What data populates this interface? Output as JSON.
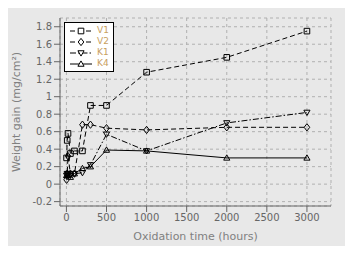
{
  "chart_data": {
    "type": "line",
    "xlabel": "Oxidation time (hours)",
    "ylabel": "Weight gain (mg/cm²)",
    "x": [
      2,
      10,
      20,
      50,
      100,
      200,
      300,
      500,
      1000,
      2000,
      3000
    ],
    "series": [
      {
        "name": "V1",
        "color": "black",
        "marker": "square",
        "line_style": "dashed",
        "values": [
          0.3,
          0.5,
          0.58,
          0.35,
          0.38,
          0.38,
          0.9,
          0.9,
          1.28,
          1.45,
          1.75
        ]
      },
      {
        "name": "V2",
        "color": "black",
        "marker": "diamond",
        "line_style": "dashed",
        "values": [
          0.05,
          0.12,
          0.32,
          0.12,
          0.12,
          0.68,
          0.68,
          0.64,
          0.62,
          0.65,
          0.65
        ]
      },
      {
        "name": "K1",
        "color": "black",
        "marker": "triangle_down",
        "line_style": "dashdot",
        "values": [
          0.1,
          0.12,
          0.12,
          0.1,
          0.12,
          0.13,
          0.22,
          0.57,
          0.38,
          0.7,
          0.82
        ]
      },
      {
        "name": "K4",
        "color": "black",
        "marker": "triangle_up",
        "line_style": "solid",
        "values": [
          0.1,
          0.1,
          0.1,
          0.08,
          0.12,
          0.18,
          0.2,
          0.39,
          0.38,
          0.3,
          0.3
        ]
      }
    ],
    "xlim": [
      -80,
      3300
    ],
    "ylim": [
      -0.25,
      1.9
    ],
    "xticks": [
      0,
      500,
      1000,
      1500,
      2000,
      2500,
      3000
    ],
    "yticks": [
      -0.2,
      0.0,
      0.2,
      0.4,
      0.6,
      0.8,
      1.0,
      1.2,
      1.4,
      1.6,
      1.8
    ],
    "grid": true,
    "legend": "upper left"
  }
}
